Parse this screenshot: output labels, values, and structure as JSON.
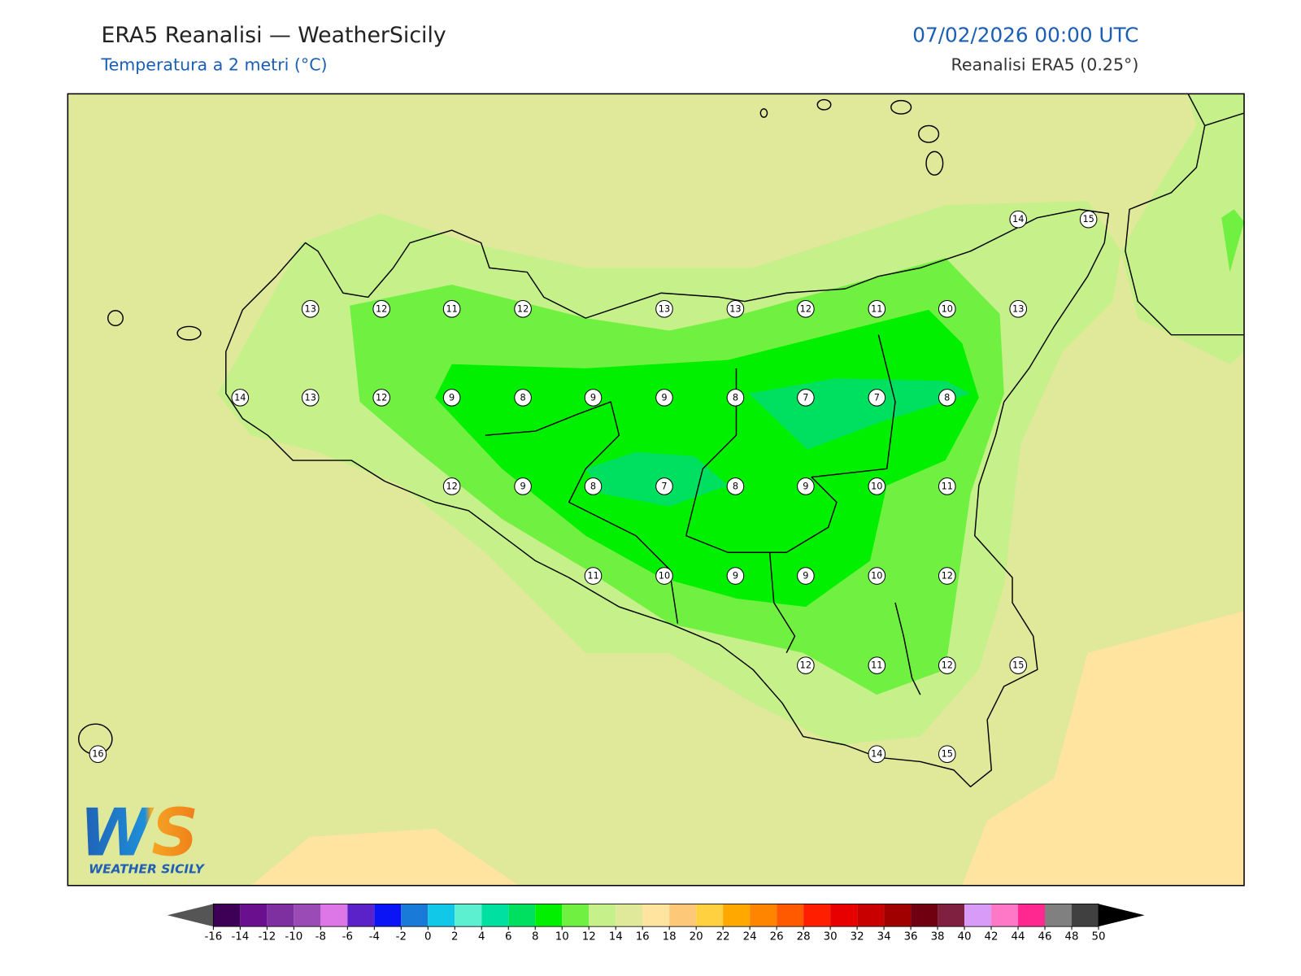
{
  "header": {
    "title": "ERA5 Reanalisi — WeatherSicily",
    "subtitle": "Temperatura a 2 metri (°C)",
    "datetime": "07/02/2026 00:00 UTC",
    "source": "Reanalisi ERA5 (0.25°)"
  },
  "map": {
    "station_values": [
      14,
      15,
      13,
      12,
      11,
      12,
      13,
      13,
      12,
      11,
      10,
      13,
      14,
      13,
      12,
      9,
      8,
      9,
      9,
      8,
      7,
      7,
      8,
      12,
      9,
      8,
      7,
      8,
      9,
      10,
      11,
      11,
      10,
      9,
      9,
      10,
      12,
      12,
      11,
      12,
      15,
      16,
      14,
      15
    ]
  },
  "colorbar": {
    "ticks": [
      -16,
      -14,
      -12,
      -10,
      -8,
      -6,
      -4,
      -2,
      0,
      2,
      4,
      6,
      8,
      10,
      12,
      14,
      16,
      18,
      20,
      22,
      24,
      26,
      28,
      30,
      32,
      34,
      36,
      38,
      40,
      42,
      44,
      46,
      48,
      50
    ],
    "colors": [
      "#3d0056",
      "#6a0f8e",
      "#7e2fa0",
      "#9b4bb5",
      "#dd77e8",
      "#5a22c8",
      "#0a14f5",
      "#1a7ad8",
      "#12c8e8",
      "#5df0d0",
      "#00e0a0",
      "#00e060",
      "#00f000",
      "#70f040",
      "#c5f08a",
      "#e0e89a",
      "#ffe4a0",
      "#fdc878",
      "#ffd040",
      "#ffa800",
      "#ff8400",
      "#ff5a00",
      "#ff1e00",
      "#e80000",
      "#c80000",
      "#a00000",
      "#700010",
      "#802040",
      "#d89cf8",
      "#ff78c8",
      "#ff2890",
      "#808080",
      "#404040"
    ],
    "under_color": "#555555",
    "over_color": "#000000"
  },
  "logo": {
    "mark": "WS",
    "name": "WEATHER SICILY"
  }
}
